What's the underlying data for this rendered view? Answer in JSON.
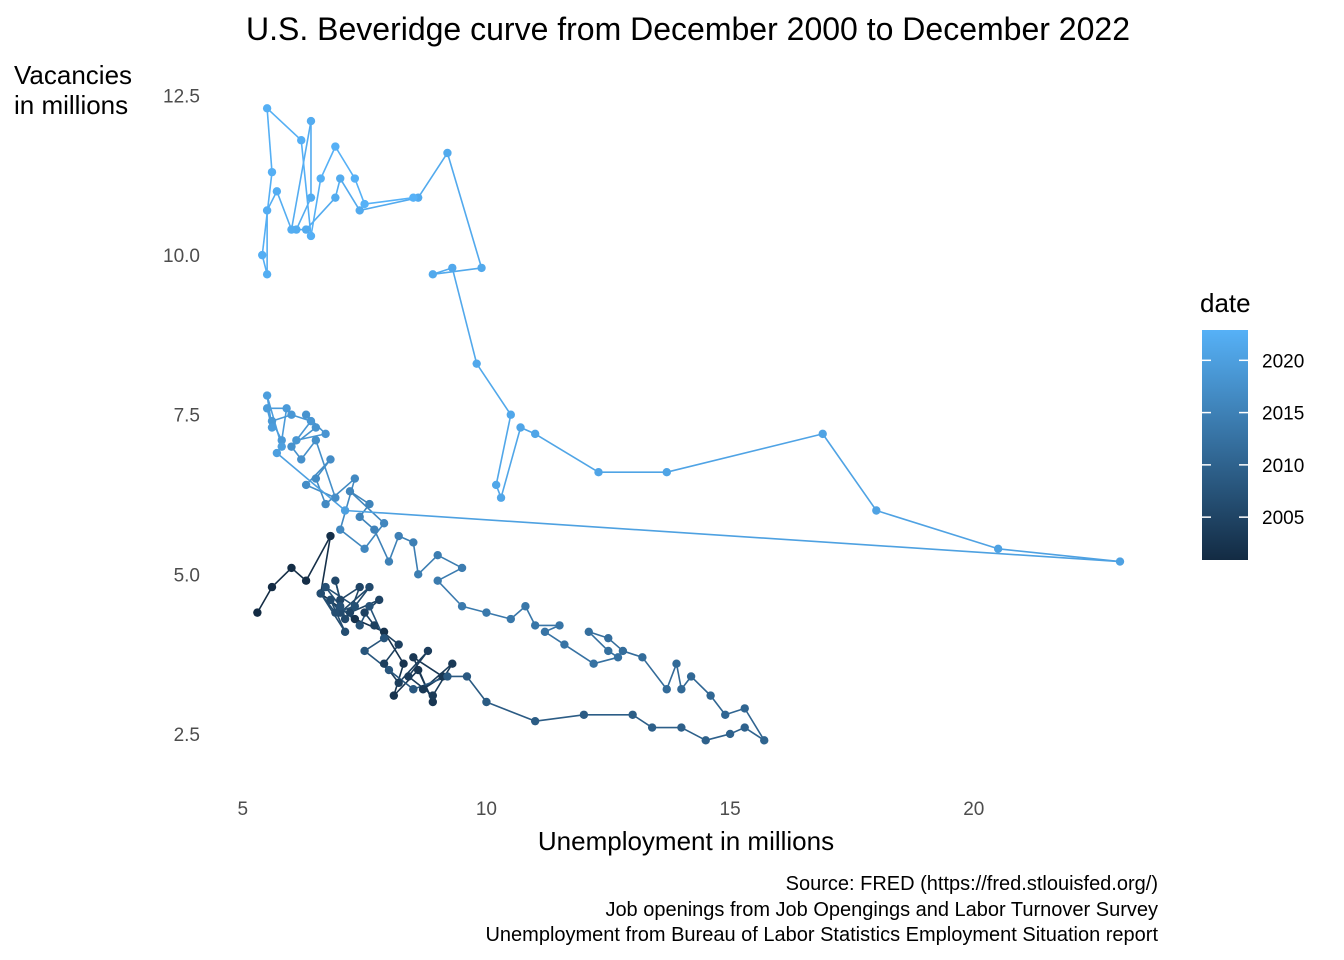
{
  "chart_data": {
    "type": "line",
    "title": "U.S. Beveridge curve from December 2000 to December 2022",
    "xlabel": "Unemployment in millions",
    "ylabel_lines": [
      "Vacancies",
      "in millions"
    ],
    "xlim": [
      4.8,
      23.0
    ],
    "ylim": [
      1.7,
      12.9
    ],
    "x_ticks": [
      5,
      10,
      15,
      20
    ],
    "y_ticks": [
      2.5,
      5.0,
      7.5,
      10.0,
      12.5
    ],
    "y_tick_labels": [
      "2.5",
      "5.0",
      "7.5",
      "10.0",
      "12.5"
    ],
    "grid": false,
    "legend": {
      "title": "date",
      "placement": "right",
      "ticks": [
        2005,
        2010,
        2015,
        2020
      ],
      "range": [
        2000.9,
        2022.9
      ],
      "color_low": "#132b43",
      "color_high": "#56b1f7"
    },
    "caption": [
      "Source: FRED (https://fred.stlouisfed.org/)",
      "Job openings from Job Opengings and Labor Turnover Survey",
      "Unemployment from Bureau of Labor Statistics Employment Situation report"
    ],
    "series": [
      {
        "values_note": "",
        "points": [
          [
            5.3,
            4.4,
            2000.9
          ],
          [
            5.6,
            4.8,
            2001.1
          ],
          [
            6.0,
            5.1,
            2001.3
          ],
          [
            6.3,
            4.9,
            2001.4
          ],
          [
            6.8,
            5.6,
            2001.6
          ],
          [
            6.6,
            4.7,
            2001.8
          ],
          [
            7.3,
            4.3,
            2001.9
          ],
          [
            7.9,
            4.1,
            2002.0
          ],
          [
            8.3,
            3.6,
            2002.2
          ],
          [
            8.1,
            3.1,
            2002.4
          ],
          [
            8.6,
            3.5,
            2002.5
          ],
          [
            8.9,
            3.0,
            2002.7
          ],
          [
            8.5,
            3.7,
            2002.9
          ],
          [
            9.1,
            3.4,
            2003.0
          ],
          [
            8.7,
            3.2,
            2003.2
          ],
          [
            9.3,
            3.6,
            2003.4
          ],
          [
            8.9,
            3.1,
            2003.5
          ],
          [
            8.4,
            3.4,
            2003.7
          ],
          [
            8.8,
            3.8,
            2003.9
          ],
          [
            8.2,
            3.3,
            2004.0
          ],
          [
            7.9,
            3.6,
            2004.2
          ],
          [
            8.2,
            3.9,
            2004.4
          ],
          [
            7.7,
            4.2,
            2004.5
          ],
          [
            7.5,
            4.4,
            2004.7
          ],
          [
            7.8,
            4.6,
            2004.9
          ],
          [
            7.2,
            4.4,
            2005.0
          ],
          [
            7.4,
            4.8,
            2005.2
          ],
          [
            7.0,
            4.6,
            2005.4
          ],
          [
            6.9,
            4.9,
            2005.5
          ],
          [
            7.1,
            4.3,
            2005.7
          ],
          [
            7.6,
            4.8,
            2005.9
          ],
          [
            7.0,
            4.4,
            2006.0
          ],
          [
            6.8,
            4.6,
            2006.2
          ],
          [
            7.1,
            4.1,
            2006.4
          ],
          [
            6.6,
            4.7,
            2006.5
          ],
          [
            6.9,
            4.4,
            2006.7
          ],
          [
            7.3,
            4.5,
            2006.9
          ],
          [
            6.7,
            4.8,
            2007.0
          ],
          [
            7.0,
            4.5,
            2007.2
          ],
          [
            7.4,
            4.2,
            2007.4
          ],
          [
            7.6,
            4.5,
            2007.5
          ],
          [
            7.9,
            4.0,
            2007.7
          ],
          [
            7.5,
            3.8,
            2007.9
          ],
          [
            8.0,
            3.5,
            2008.0
          ],
          [
            8.5,
            3.2,
            2008.2
          ],
          [
            9.2,
            3.4,
            2008.4
          ],
          [
            9.6,
            3.4,
            2008.5
          ],
          [
            10.0,
            3.0,
            2008.7
          ],
          [
            11.0,
            2.7,
            2008.9
          ],
          [
            12.0,
            2.8,
            2009.0
          ],
          [
            13.0,
            2.8,
            2009.2
          ],
          [
            13.4,
            2.6,
            2009.4
          ],
          [
            14.0,
            2.6,
            2009.5
          ],
          [
            14.5,
            2.4,
            2009.7
          ],
          [
            15.0,
            2.5,
            2009.9
          ],
          [
            15.3,
            2.6,
            2010.0
          ],
          [
            15.7,
            2.4,
            2010.2
          ],
          [
            15.3,
            2.9,
            2010.4
          ],
          [
            14.9,
            2.8,
            2010.5
          ],
          [
            14.6,
            3.1,
            2010.7
          ],
          [
            14.2,
            3.4,
            2010.9
          ],
          [
            14.0,
            3.2,
            2011.0
          ],
          [
            13.9,
            3.6,
            2011.2
          ],
          [
            13.7,
            3.2,
            2011.4
          ],
          [
            13.2,
            3.7,
            2011.5
          ],
          [
            12.8,
            3.8,
            2011.7
          ],
          [
            12.5,
            4.0,
            2011.9
          ],
          [
            12.1,
            4.1,
            2012.0
          ],
          [
            12.5,
            3.8,
            2012.2
          ],
          [
            12.7,
            3.7,
            2012.4
          ],
          [
            12.2,
            3.6,
            2012.5
          ],
          [
            11.6,
            3.9,
            2012.7
          ],
          [
            11.2,
            4.1,
            2012.9
          ],
          [
            11.5,
            4.2,
            2013.0
          ],
          [
            11.0,
            4.2,
            2013.2
          ],
          [
            10.8,
            4.5,
            2013.4
          ],
          [
            10.5,
            4.3,
            2013.5
          ],
          [
            10.0,
            4.4,
            2013.7
          ],
          [
            9.5,
            4.5,
            2013.9
          ],
          [
            9.0,
            4.9,
            2014.0
          ],
          [
            9.5,
            5.1,
            2014.2
          ],
          [
            9.0,
            5.3,
            2014.4
          ],
          [
            8.6,
            5.0,
            2014.5
          ],
          [
            8.5,
            5.5,
            2014.7
          ],
          [
            8.2,
            5.6,
            2014.9
          ],
          [
            8.0,
            5.2,
            2015.0
          ],
          [
            7.7,
            5.7,
            2015.2
          ],
          [
            7.4,
            5.9,
            2015.4
          ],
          [
            7.6,
            6.1,
            2015.5
          ],
          [
            7.2,
            6.3,
            2015.7
          ],
          [
            7.9,
            5.8,
            2015.9
          ],
          [
            7.5,
            5.4,
            2016.0
          ],
          [
            7.0,
            5.7,
            2016.2
          ],
          [
            7.3,
            6.5,
            2016.4
          ],
          [
            6.7,
            6.1,
            2016.5
          ],
          [
            6.5,
            6.5,
            2016.7
          ],
          [
            6.8,
            6.8,
            2016.9
          ],
          [
            6.3,
            6.4,
            2017.0
          ],
          [
            6.9,
            6.2,
            2017.2
          ],
          [
            6.5,
            7.1,
            2017.4
          ],
          [
            6.2,
            6.8,
            2017.5
          ],
          [
            6.0,
            7.0,
            2017.7
          ],
          [
            6.5,
            7.3,
            2017.9
          ],
          [
            6.3,
            7.5,
            2018.0
          ],
          [
            6.7,
            7.2,
            2018.2
          ],
          [
            6.1,
            7.1,
            2018.4
          ],
          [
            6.4,
            7.4,
            2018.5
          ],
          [
            6.0,
            7.5,
            2018.7
          ],
          [
            5.6,
            7.4,
            2018.9
          ],
          [
            5.8,
            7.1,
            2019.0
          ],
          [
            5.9,
            7.6,
            2019.2
          ],
          [
            5.5,
            7.6,
            2019.4
          ],
          [
            5.6,
            7.3,
            2019.5
          ],
          [
            5.5,
            7.8,
            2019.7
          ],
          [
            5.8,
            7.0,
            2019.9
          ],
          [
            5.7,
            6.9,
            2020.0
          ],
          [
            7.1,
            6.0,
            2020.1
          ],
          [
            23.0,
            5.2,
            2020.3
          ],
          [
            20.5,
            5.4,
            2020.4
          ],
          [
            18.0,
            6.0,
            2020.5
          ],
          [
            16.9,
            7.2,
            2020.6
          ],
          [
            13.7,
            6.6,
            2020.7
          ],
          [
            12.3,
            6.6,
            2020.8
          ],
          [
            11.0,
            7.2,
            2020.9
          ],
          [
            10.7,
            7.3,
            2021.0
          ],
          [
            10.3,
            6.2,
            2021.1
          ],
          [
            10.2,
            6.4,
            2021.2
          ],
          [
            10.5,
            7.5,
            2021.3
          ],
          [
            9.8,
            8.3,
            2021.4
          ],
          [
            9.3,
            9.8,
            2021.5
          ],
          [
            8.9,
            9.7,
            2021.55
          ],
          [
            9.9,
            9.8,
            2021.6
          ],
          [
            9.2,
            11.6,
            2021.7
          ],
          [
            8.6,
            10.9,
            2021.75
          ],
          [
            7.4,
            10.7,
            2021.8
          ],
          [
            7.0,
            11.2,
            2021.85
          ],
          [
            6.9,
            10.9,
            2021.9
          ],
          [
            6.3,
            10.4,
            2021.95
          ],
          [
            6.1,
            10.4,
            2022.0
          ],
          [
            6.4,
            10.9,
            2022.05
          ],
          [
            6.4,
            12.1,
            2022.1
          ],
          [
            6.0,
            10.4,
            2022.2
          ],
          [
            5.7,
            11.0,
            2022.25
          ],
          [
            5.5,
            10.7,
            2022.3
          ],
          [
            5.5,
            9.7,
            2022.35
          ],
          [
            5.4,
            10.0,
            2022.4
          ],
          [
            5.6,
            11.3,
            2022.5
          ],
          [
            5.5,
            12.3,
            2022.55
          ],
          [
            6.2,
            11.8,
            2022.6
          ],
          [
            6.4,
            10.3,
            2022.65
          ],
          [
            6.6,
            11.2,
            2022.7
          ],
          [
            6.9,
            11.7,
            2022.75
          ],
          [
            7.3,
            11.2,
            2022.8
          ],
          [
            7.5,
            10.8,
            2022.85
          ],
          [
            8.5,
            10.9,
            2022.9
          ]
        ]
      }
    ]
  }
}
